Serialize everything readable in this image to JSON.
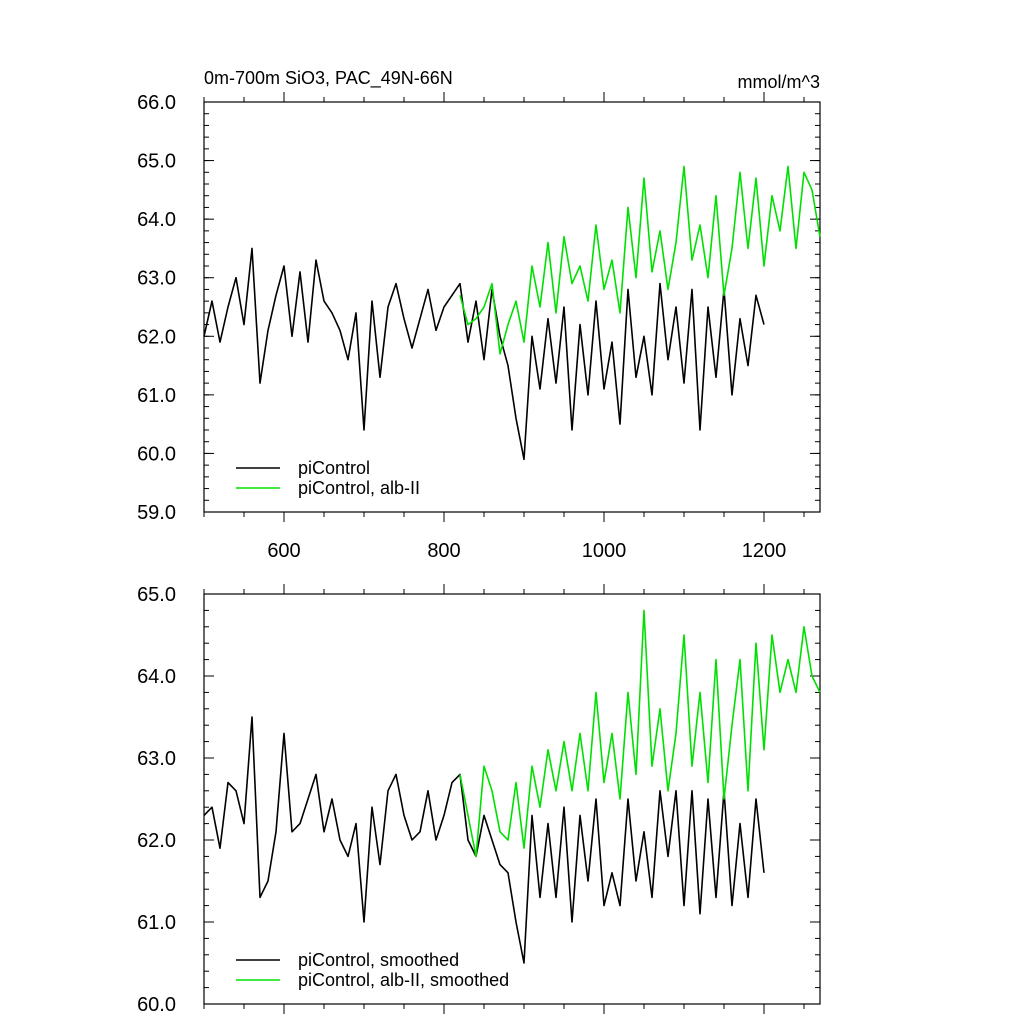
{
  "chart_data": [
    {
      "type": "line",
      "title": "0m-700m SiO3, PAC_49N-66N",
      "units": "mmol/m^3",
      "xlabel": "",
      "ylabel": "",
      "xlim": [
        500,
        1270
      ],
      "ylim": [
        59.0,
        66.0
      ],
      "x_ticks": [
        600,
        800,
        1000,
        1200
      ],
      "x_tick_labels": [
        "600",
        "800",
        "1000",
        "1200"
      ],
      "y_ticks": [
        59.0,
        60.0,
        61.0,
        62.0,
        63.0,
        64.0,
        65.0,
        66.0
      ],
      "y_tick_labels": [
        "59.0",
        "60.0",
        "61.0",
        "62.0",
        "63.0",
        "64.0",
        "65.0",
        "66.0"
      ],
      "grid": false,
      "legend_position": "bottom-left",
      "series": [
        {
          "name": "piControl",
          "color": "#000000",
          "x": [
            500,
            510,
            520,
            530,
            540,
            550,
            560,
            570,
            580,
            590,
            600,
            610,
            620,
            630,
            640,
            650,
            660,
            670,
            680,
            690,
            700,
            710,
            720,
            730,
            740,
            750,
            760,
            770,
            780,
            790,
            800,
            810,
            820,
            830,
            840,
            850,
            860,
            870,
            880,
            890,
            900,
            910,
            920,
            930,
            940,
            950,
            960,
            970,
            980,
            990,
            1000,
            1010,
            1020,
            1030,
            1040,
            1050,
            1060,
            1070,
            1080,
            1090,
            1100,
            1110,
            1120,
            1130,
            1140,
            1150,
            1160,
            1170,
            1180,
            1190,
            1200
          ],
          "values": [
            62.0,
            62.6,
            61.9,
            62.5,
            63.0,
            62.2,
            63.5,
            61.2,
            62.1,
            62.7,
            63.2,
            62.0,
            63.1,
            61.9,
            63.3,
            62.6,
            62.4,
            62.1,
            61.6,
            62.4,
            60.4,
            62.6,
            61.3,
            62.5,
            62.9,
            62.3,
            61.8,
            62.3,
            62.8,
            62.1,
            62.5,
            62.7,
            62.9,
            61.9,
            62.6,
            61.6,
            62.8,
            62.0,
            61.5,
            60.6,
            59.9,
            62.0,
            61.1,
            62.3,
            61.2,
            62.5,
            60.4,
            62.2,
            61.0,
            62.6,
            61.1,
            61.9,
            60.5,
            62.8,
            61.3,
            62.0,
            61.0,
            62.9,
            61.6,
            62.5,
            61.2,
            62.8,
            60.4,
            62.5,
            61.3,
            62.8,
            61.0,
            62.3,
            61.5,
            62.7,
            62.2
          ]
        },
        {
          "name": "piControl, alb-II",
          "color": "#00e000",
          "x": [
            820,
            830,
            840,
            850,
            860,
            870,
            880,
            890,
            900,
            910,
            920,
            930,
            940,
            950,
            960,
            970,
            980,
            990,
            1000,
            1010,
            1020,
            1030,
            1040,
            1050,
            1060,
            1070,
            1080,
            1090,
            1100,
            1110,
            1120,
            1130,
            1140,
            1150,
            1160,
            1170,
            1180,
            1190,
            1200,
            1210,
            1220,
            1230,
            1240,
            1250,
            1260,
            1270
          ],
          "values": [
            62.7,
            62.2,
            62.3,
            62.5,
            62.9,
            61.7,
            62.2,
            62.6,
            61.9,
            63.2,
            62.5,
            63.6,
            62.4,
            63.7,
            62.9,
            63.2,
            62.6,
            63.9,
            62.8,
            63.3,
            62.4,
            64.2,
            63.0,
            64.7,
            63.1,
            63.8,
            62.8,
            63.6,
            64.9,
            63.3,
            63.9,
            63.0,
            64.4,
            62.7,
            63.5,
            64.8,
            63.5,
            64.7,
            63.2,
            64.4,
            63.8,
            64.9,
            63.5,
            64.8,
            64.5,
            63.7
          ]
        }
      ]
    },
    {
      "type": "line",
      "title": "",
      "xlabel": "",
      "ylabel": "",
      "xlim": [
        500,
        1270
      ],
      "ylim": [
        60.0,
        65.0
      ],
      "x_ticks": [
        600,
        800,
        1000,
        1200
      ],
      "x_tick_labels": [],
      "y_ticks": [
        60.0,
        61.0,
        62.0,
        63.0,
        64.0,
        65.0
      ],
      "y_tick_labels": [
        "60.0",
        "61.0",
        "62.0",
        "63.0",
        "64.0",
        "65.0"
      ],
      "grid": false,
      "legend_position": "bottom-left",
      "series": [
        {
          "name": "piControl, smoothed",
          "color": "#000000",
          "x": [
            500,
            510,
            520,
            530,
            540,
            550,
            560,
            570,
            580,
            590,
            600,
            610,
            620,
            630,
            640,
            650,
            660,
            670,
            680,
            690,
            700,
            710,
            720,
            730,
            740,
            750,
            760,
            770,
            780,
            790,
            800,
            810,
            820,
            830,
            840,
            850,
            860,
            870,
            880,
            890,
            900,
            910,
            920,
            930,
            940,
            950,
            960,
            970,
            980,
            990,
            1000,
            1010,
            1020,
            1030,
            1040,
            1050,
            1060,
            1070,
            1080,
            1090,
            1100,
            1110,
            1120,
            1130,
            1140,
            1150,
            1160,
            1170,
            1180,
            1190,
            1200
          ],
          "values": [
            62.3,
            62.4,
            61.9,
            62.7,
            62.6,
            62.2,
            63.5,
            61.3,
            61.5,
            62.1,
            63.3,
            62.1,
            62.2,
            62.5,
            62.8,
            62.1,
            62.5,
            62.0,
            61.8,
            62.2,
            61.0,
            62.4,
            61.7,
            62.6,
            62.8,
            62.3,
            62.0,
            62.1,
            62.6,
            62.0,
            62.3,
            62.7,
            62.8,
            62.0,
            61.8,
            62.3,
            62.0,
            61.7,
            61.6,
            61.0,
            60.5,
            62.3,
            61.3,
            62.2,
            61.3,
            62.4,
            61.0,
            62.3,
            61.5,
            62.5,
            61.2,
            61.6,
            61.2,
            62.5,
            61.5,
            62.1,
            61.3,
            62.6,
            61.8,
            62.6,
            61.2,
            62.6,
            61.1,
            62.5,
            61.3,
            62.6,
            61.2,
            62.2,
            61.3,
            62.5,
            61.6
          ]
        },
        {
          "name": "piControl, alb-II, smoothed",
          "color": "#00e000",
          "x": [
            820,
            830,
            840,
            850,
            860,
            870,
            880,
            890,
            900,
            910,
            920,
            930,
            940,
            950,
            960,
            970,
            980,
            990,
            1000,
            1010,
            1020,
            1030,
            1040,
            1050,
            1060,
            1070,
            1080,
            1090,
            1100,
            1110,
            1120,
            1130,
            1140,
            1150,
            1160,
            1170,
            1180,
            1190,
            1200,
            1210,
            1220,
            1230,
            1240,
            1250,
            1260,
            1270
          ],
          "values": [
            62.8,
            62.3,
            61.8,
            62.9,
            62.6,
            62.1,
            62.0,
            62.7,
            61.9,
            62.9,
            62.4,
            63.1,
            62.6,
            63.2,
            62.6,
            63.3,
            62.6,
            63.8,
            62.7,
            63.3,
            62.5,
            63.8,
            62.8,
            64.8,
            62.9,
            63.6,
            62.6,
            63.3,
            64.5,
            62.9,
            63.8,
            62.7,
            64.2,
            62.5,
            63.4,
            64.2,
            62.6,
            64.4,
            63.1,
            64.5,
            63.8,
            64.2,
            63.8,
            64.6,
            64.0,
            63.8
          ]
        }
      ]
    }
  ]
}
